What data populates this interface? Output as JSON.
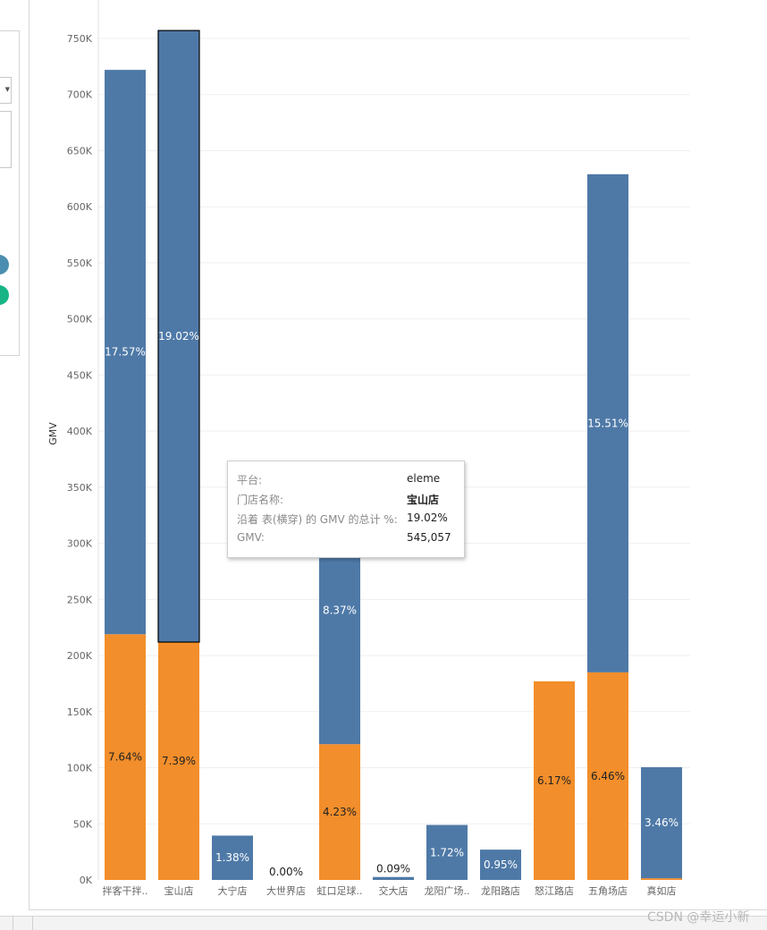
{
  "colors": {
    "blue": "#4e79a7",
    "orange": "#f28e2b",
    "gridline": "#efefef",
    "axis_text": "#666666",
    "label_on_blue": "#ffffff",
    "label_on_orange": "#222222",
    "selected_outline": "#000000"
  },
  "chart_data": {
    "type": "bar",
    "stacked": true,
    "ylabel": "GMV",
    "ylim": [
      0,
      750000
    ],
    "yticks": [
      0,
      50000,
      100000,
      150000,
      200000,
      250000,
      300000,
      350000,
      400000,
      450000,
      500000,
      550000,
      600000,
      650000,
      700000,
      750000
    ],
    "ytick_labels": [
      "0K",
      "50K",
      "100K",
      "150K",
      "200K",
      "250K",
      "300K",
      "350K",
      "400K",
      "450K",
      "500K",
      "550K",
      "600K",
      "650K",
      "700K",
      "750K"
    ],
    "grid": true,
    "categories": [
      "拌客干拌..",
      "宝山店",
      "大宁店",
      "大世界店",
      "虹口足球..",
      "交大店",
      "龙阳广场..",
      "龙阳路店",
      "怒江路店",
      "五角场店",
      "真如店"
    ],
    "series": [
      {
        "color": "#f28e2b",
        "values": [
          219000,
          212000,
          0,
          0,
          121000,
          0,
          0,
          0,
          177000,
          185000,
          1500
        ],
        "labels": [
          "7.64%",
          "7.39%",
          "",
          "",
          "4.23%",
          "",
          "",
          "",
          "6.17%",
          "6.46%",
          ""
        ]
      },
      {
        "color": "#4e79a7",
        "values": [
          503000,
          545057,
          39500,
          0,
          239000,
          2600,
          49000,
          27000,
          0,
          444000,
          99000
        ],
        "labels": [
          "17.57%",
          "19.02%",
          "1.38%",
          "0.00%",
          "8.37%",
          "0.09%",
          "1.72%",
          "0.95%",
          "",
          "15.51%",
          "3.46%"
        ]
      }
    ],
    "selected_index": 1
  },
  "tooltip": {
    "rows": [
      {
        "label": "平台:",
        "value": "eleme"
      },
      {
        "label": "门店名称:",
        "value": "宝山店"
      },
      {
        "label": "沿着 表(横穿) 的 GMV 的总计 %:",
        "value": "19.02%"
      },
      {
        "label": "GMV:",
        "value": "545,057"
      }
    ]
  },
  "watermark": "CSDN @幸运小新"
}
